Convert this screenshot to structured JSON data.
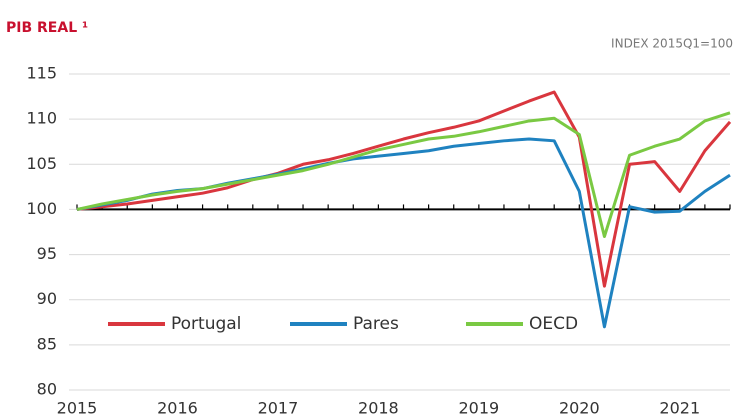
{
  "chart_data": {
    "type": "line",
    "title": "PIB REAL ¹",
    "subtitle": "INDEX 2015Q1=100",
    "x": [
      2015,
      2015.25,
      2015.5,
      2015.75,
      2016,
      2016.25,
      2016.5,
      2016.75,
      2017,
      2017.25,
      2017.5,
      2017.75,
      2018,
      2018.25,
      2018.5,
      2018.75,
      2019,
      2019.25,
      2019.5,
      2019.75,
      2020,
      2020.25,
      2020.5,
      2020.75,
      2021,
      2021.25,
      2021.5
    ],
    "series": [
      {
        "name": "Portugal",
        "color": "#d9363e",
        "values": [
          100,
          100.3,
          100.6,
          101,
          101.4,
          101.8,
          102.4,
          103.3,
          104,
          105,
          105.5,
          106.2,
          107,
          107.8,
          108.5,
          109.1,
          109.8,
          110.9,
          112,
          113,
          108,
          91.5,
          105,
          105.3,
          102,
          106.5,
          109.7
        ]
      },
      {
        "name": "Pares",
        "color": "#1f82c0",
        "values": [
          100,
          100.5,
          101,
          101.7,
          102.1,
          102.3,
          102.9,
          103.4,
          103.9,
          104.5,
          105.1,
          105.6,
          105.9,
          106.2,
          106.5,
          107,
          107.3,
          107.6,
          107.8,
          107.6,
          102,
          87,
          100.3,
          99.7,
          99.8,
          102,
          103.8
        ]
      },
      {
        "name": "OECD",
        "color": "#7ac943",
        "values": [
          100,
          100.6,
          101.1,
          101.6,
          102,
          102.3,
          102.8,
          103.3,
          103.8,
          104.3,
          105,
          105.8,
          106.6,
          107.2,
          107.8,
          108.1,
          108.6,
          109.2,
          109.8,
          110.1,
          108.3,
          97,
          106,
          107,
          107.8,
          109.8,
          110.7
        ]
      }
    ],
    "xlim": [
      2015,
      2021.5
    ],
    "xticks": [
      2015,
      2016,
      2017,
      2018,
      2019,
      2020,
      2021
    ],
    "ylim": [
      80,
      115
    ],
    "yticks": [
      80,
      85,
      90,
      95,
      100,
      105,
      110,
      115
    ],
    "reference_line": 100,
    "grid": true
  }
}
